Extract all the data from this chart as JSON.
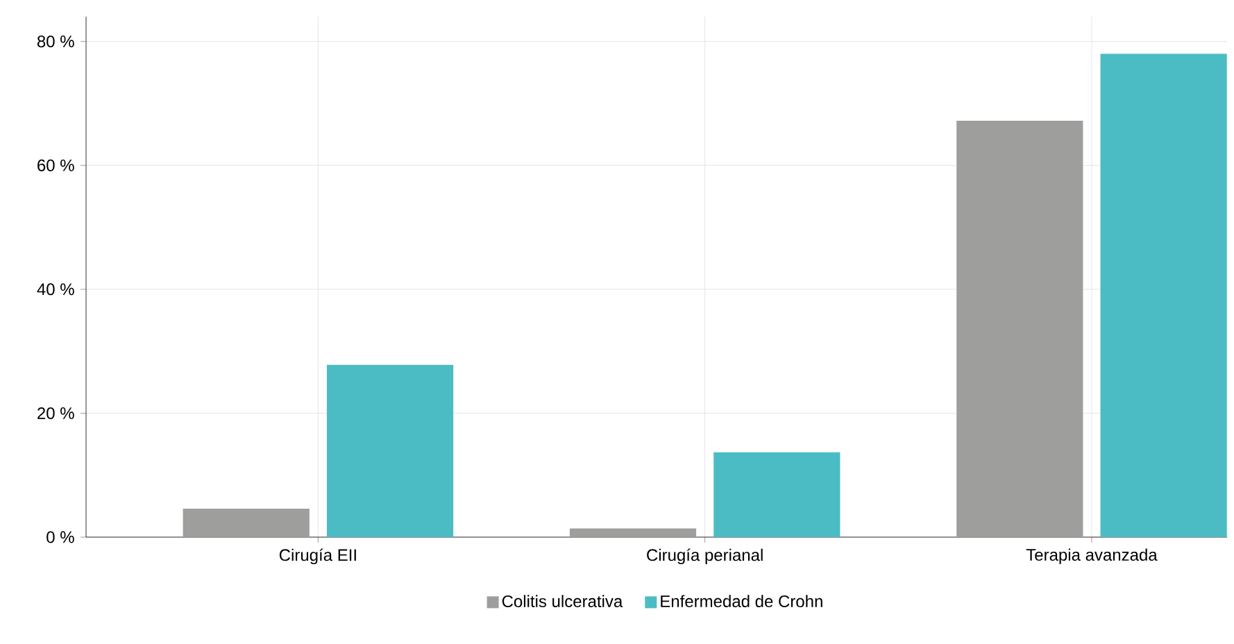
{
  "chart_data": {
    "type": "bar",
    "categories": [
      "Cirugía EII",
      "Cirugía perianal",
      "Terapia avanzada"
    ],
    "series": [
      {
        "name": "Colitis ulcerativa",
        "color": "#9e9e9d",
        "values": [
          4.6,
          1.4,
          67.2
        ]
      },
      {
        "name": "Enfermedad de Crohn",
        "color": "#4bbcc4",
        "values": [
          27.8,
          13.7,
          78.0
        ]
      }
    ],
    "ylim": [
      0,
      84
    ],
    "yticks": [
      {
        "value": 0,
        "label": "0 %"
      },
      {
        "value": 20,
        "label": "20 %"
      },
      {
        "value": 40,
        "label": "40 %"
      },
      {
        "value": 60,
        "label": "60 %"
      },
      {
        "value": 80,
        "label": "80 %"
      }
    ],
    "grid": true,
    "legend": "bottom"
  }
}
